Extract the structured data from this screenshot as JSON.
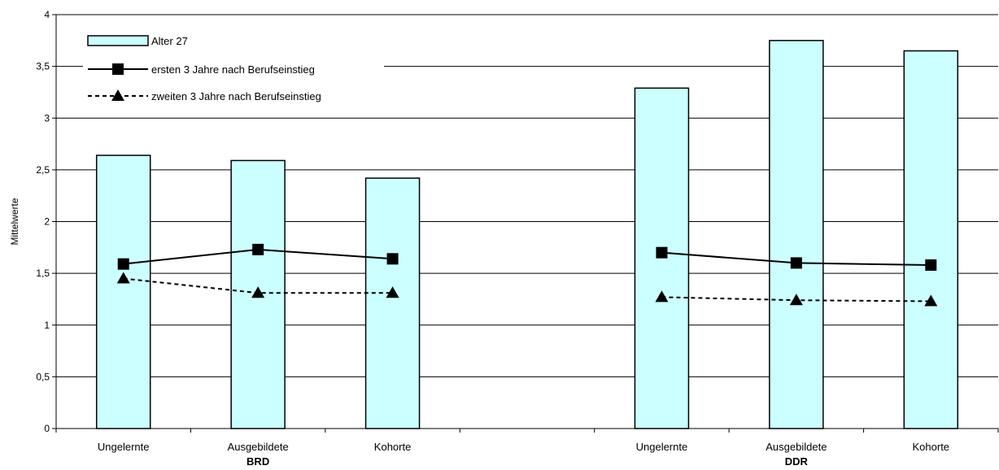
{
  "chart_data": {
    "type": "bar",
    "ylabel": "Mittelwerte",
    "ylim": [
      0,
      4
    ],
    "y_ticks": [
      "0",
      "0,5",
      "1",
      "1,5",
      "2",
      "2,5",
      "3",
      "3,5",
      "4"
    ],
    "grid": true,
    "legend_position": "top-left",
    "categories": [
      "Ungelernte",
      "Ausgebildete",
      "Kohorte",
      "Ungelernte",
      "Ausgebildete",
      "Kohorte"
    ],
    "groups": [
      {
        "label": "BRD",
        "category_indices": [
          0,
          1,
          2
        ]
      },
      {
        "label": "DDR",
        "category_indices": [
          3,
          4,
          5
        ]
      }
    ],
    "series": [
      {
        "name": "Alter 27",
        "kind": "bar",
        "color": "#ccffff",
        "values": [
          2.64,
          2.59,
          2.42,
          3.29,
          3.75,
          3.65
        ]
      },
      {
        "name": "ersten 3 Jahre nach Berufseinstieg",
        "kind": "line",
        "marker": "square",
        "line_style": "solid",
        "color": "#000000",
        "values": [
          1.59,
          1.73,
          1.64,
          1.7,
          1.6,
          1.58
        ]
      },
      {
        "name": "zweiten 3 Jahre nach Berufseinstieg",
        "kind": "line",
        "marker": "triangle",
        "line_style": "dashed",
        "color": "#000000",
        "values": [
          1.45,
          1.31,
          1.31,
          1.27,
          1.24,
          1.23
        ]
      }
    ]
  }
}
